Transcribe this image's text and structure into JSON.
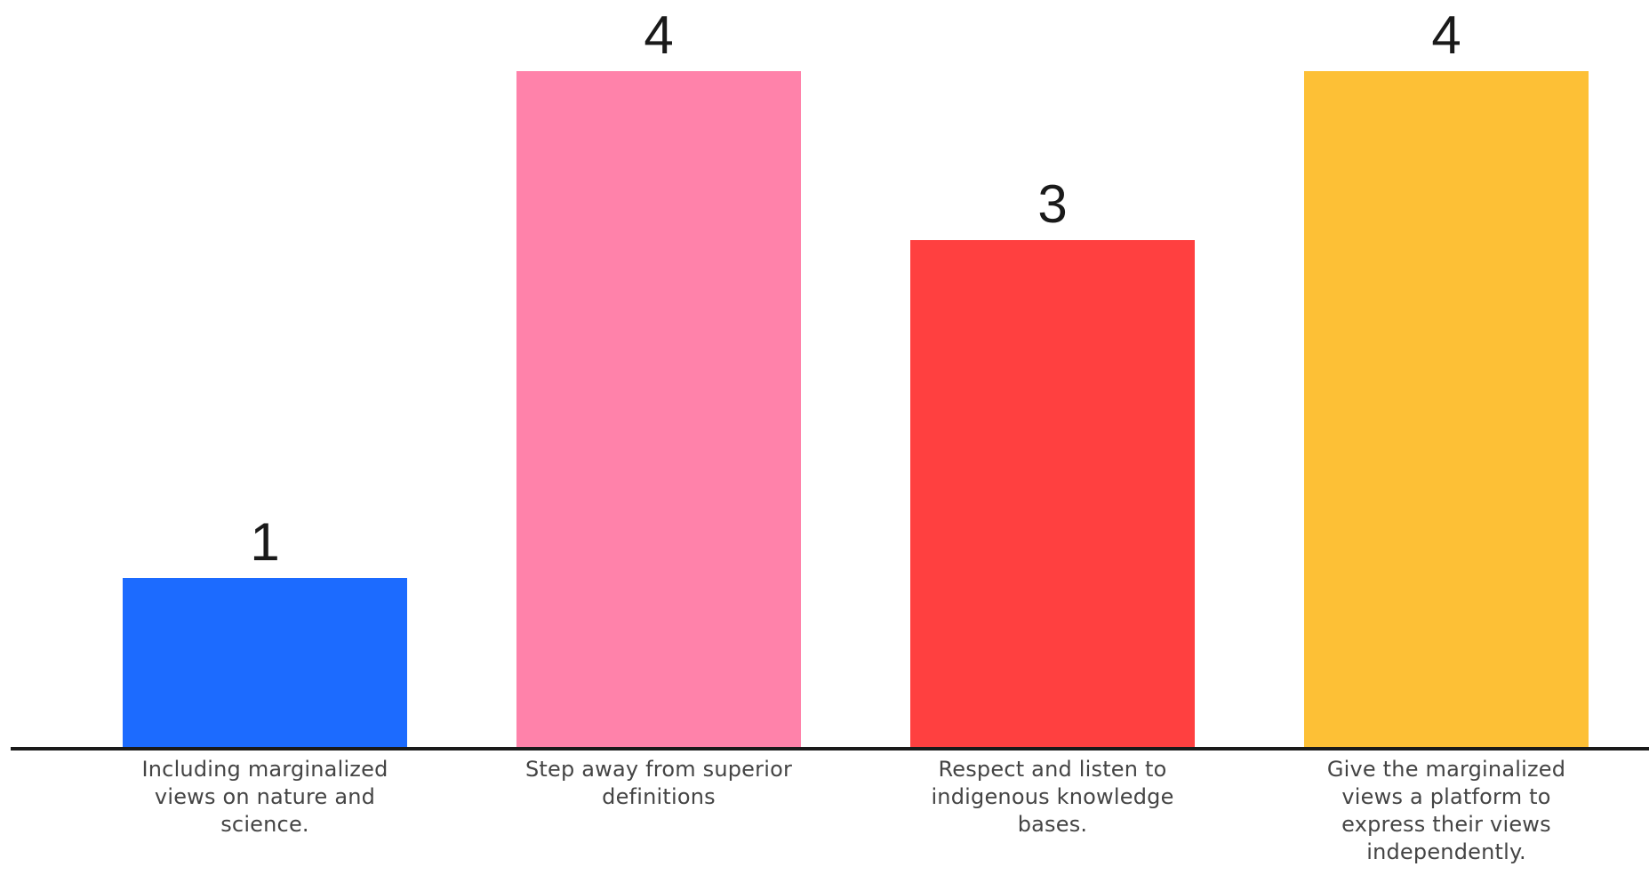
{
  "chart_data": {
    "type": "bar",
    "categories": [
      "Including marginalized views on nature and science.",
      "Step away from superior definitions",
      "Respect and listen to indigenous knowledge bases.",
      "Give the marginalized views a platform to express their views independently."
    ],
    "values": [
      1,
      4,
      3,
      4
    ],
    "data_labels": [
      "1",
      "4",
      "3",
      "4"
    ],
    "colors": [
      "#1c6bff",
      "#ff82aa",
      "#ff4040",
      "#fdc036"
    ],
    "axis_color": "#1a1a1a",
    "ylim": [
      0,
      4
    ],
    "grid": false,
    "title": "",
    "xlabel": "",
    "ylabel": ""
  }
}
